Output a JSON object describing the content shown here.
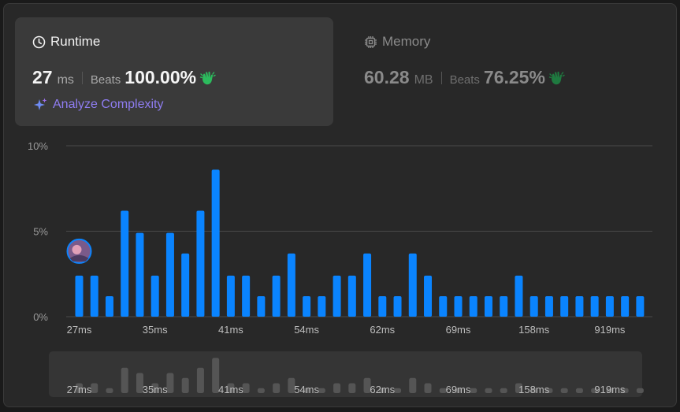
{
  "runtime": {
    "title": "Runtime",
    "value": "27",
    "unit": "ms",
    "beats_label": "Beats",
    "beats_pct": "100.00%",
    "analyze_label": "Analyze Complexity",
    "icon": "clock-icon"
  },
  "memory": {
    "title": "Memory",
    "value": "60.28",
    "unit": "MB",
    "beats_label": "Beats",
    "beats_pct": "76.25%",
    "icon": "chip-icon"
  },
  "colors": {
    "bar": "#0a84ff",
    "accent": "#8e7cf0",
    "clap_green": "#2cbb5d"
  },
  "chart_data": {
    "type": "bar",
    "y_ticks": [
      "10%",
      "5%",
      "0%"
    ],
    "ylim": [
      0,
      10
    ],
    "x_tick_labels": [
      "27ms",
      "35ms",
      "41ms",
      "54ms",
      "62ms",
      "69ms",
      "158ms",
      "919ms"
    ],
    "x_tick_positions": [
      0,
      5,
      10,
      15,
      20,
      25,
      30,
      35
    ],
    "values": [
      2.4,
      2.4,
      1.2,
      6.2,
      4.9,
      2.4,
      4.9,
      3.7,
      6.2,
      8.6,
      2.4,
      2.4,
      1.2,
      2.4,
      3.7,
      1.2,
      1.2,
      2.4,
      2.4,
      3.7,
      1.2,
      1.2,
      3.7,
      2.4,
      1.2,
      1.2,
      1.2,
      1.2,
      1.2,
      2.4,
      1.2,
      1.2,
      1.2,
      1.2,
      1.2,
      1.2,
      1.2,
      1.2
    ],
    "highlight_index": 0,
    "grid": true
  }
}
